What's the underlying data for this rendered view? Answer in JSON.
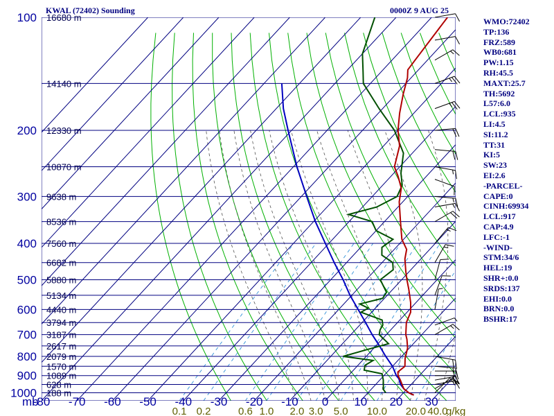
{
  "header": {
    "title": "KWAL (72402) Sounding",
    "timestamp": "0000Z  9 AUG 25"
  },
  "indices": [
    "WMO:72402",
    "TP:136",
    "FRZ:589",
    "WB0:681",
    "PW:1.15",
    "RH:45.5",
    "MAXT:25.7",
    "TH:5692",
    "L57:6.0",
    "LCL:935",
    "LI:4.5",
    "SI:11.2",
    "TT:31",
    "KI:5",
    "SW:23",
    "EI:2.6",
    "-PARCEL-",
    "CAPE:0",
    "CINH:69934",
    "LCL:917",
    "CAP:4.9",
    "LFC:-1",
    "-WIND-",
    "STM:34/6",
    "HEL:19",
    "SHR+:0.0",
    "SRDS:137",
    "EHI:0.0",
    "BRN:0.0",
    "BSHR:17"
  ],
  "colors": {
    "isobar_isotherm": "#000080",
    "dry_adiabat": "#00b000",
    "moist_adiabat": "#505050",
    "mixing_ratio": "#3090d8",
    "temperature": "#b00000",
    "dewpoint": "#005000",
    "parcel": "#0000c0",
    "axis_label": "#0000a0",
    "mixing_label": "#606000",
    "wind": "#000000"
  },
  "chart_data": {
    "type": "line",
    "chart_kind": "skew-T log-P sounding",
    "xlabel_unit": "mb",
    "temperature_ticks": [
      -80,
      -70,
      -60,
      -50,
      -40,
      -30,
      -20,
      -10,
      0,
      10,
      20,
      30,
      40
    ],
    "pressure_ticks": [
      100,
      200,
      300,
      400,
      500,
      600,
      700,
      800,
      900,
      1000
    ],
    "mixing_ratio_axis_unit": "g/kg",
    "mixing_ratio_labels": [
      "0.1",
      "0.2",
      "0.6",
      "1.0",
      "2.0",
      "3.0",
      "5.0",
      "10.0",
      "20.0",
      "40.0"
    ],
    "mixing_ratio_values": [
      0.1,
      0.2,
      0.6,
      1.0,
      2.0,
      3.0,
      5.0,
      10.0,
      20.0,
      40.0
    ],
    "height_labels": [
      {
        "p": 100,
        "label": "16680 m"
      },
      {
        "p": 150,
        "label": "14140 m"
      },
      {
        "p": 200,
        "label": "12330 m"
      },
      {
        "p": 250,
        "label": "10870 m"
      },
      {
        "p": 300,
        "label": "9638 m"
      },
      {
        "p": 350,
        "label": "8536 m"
      },
      {
        "p": 400,
        "label": "7560 m"
      },
      {
        "p": 450,
        "label": "6682 m"
      },
      {
        "p": 500,
        "label": "5880 m"
      },
      {
        "p": 550,
        "label": "5134 m"
      },
      {
        "p": 600,
        "label": "4440 m"
      },
      {
        "p": 650,
        "label": "3794 m"
      },
      {
        "p": 700,
        "label": "3187 m"
      },
      {
        "p": 750,
        "label": "2617 m"
      },
      {
        "p": 800,
        "label": "2079 m"
      },
      {
        "p": 850,
        "label": "1570 m"
      },
      {
        "p": 900,
        "label": "1089 m"
      },
      {
        "p": 950,
        "label": "628 m"
      },
      {
        "p": 1000,
        "label": "188 m"
      }
    ],
    "temperature": [
      [
        1014,
        23.5
      ],
      [
        1000,
        21.5
      ],
      [
        975,
        19.0
      ],
      [
        925,
        15.8
      ],
      [
        900,
        14.0
      ],
      [
        880,
        13.0
      ],
      [
        850,
        13.5
      ],
      [
        810,
        11.5
      ],
      [
        760,
        9.5
      ],
      [
        720,
        7.0
      ],
      [
        700,
        5.5
      ],
      [
        650,
        2.5
      ],
      [
        610,
        1.0
      ],
      [
        575,
        -1.5
      ],
      [
        530,
        -5.5
      ],
      [
        500,
        -8.5
      ],
      [
        475,
        -11.0
      ],
      [
        440,
        -14.5
      ],
      [
        415,
        -16.5
      ],
      [
        390,
        -20.5
      ],
      [
        350,
        -25.5
      ],
      [
        310,
        -31.0
      ],
      [
        285,
        -34.0
      ],
      [
        265,
        -38.0
      ],
      [
        250,
        -41.5
      ],
      [
        220,
        -45.5
      ],
      [
        200,
        -50.0
      ],
      [
        180,
        -54.0
      ],
      [
        160,
        -58.0
      ],
      [
        145,
        -61.0
      ],
      [
        138,
        -63.0
      ],
      [
        130,
        -63.5
      ],
      [
        100,
        -65.5
      ]
    ],
    "dewpoint": [
      [
        1000,
        15.0
      ],
      [
        980,
        13.5
      ],
      [
        925,
        11.0
      ],
      [
        890,
        9.0
      ],
      [
        870,
        3.0
      ],
      [
        845,
        2.0
      ],
      [
        820,
        3.0
      ],
      [
        800,
        -6.5
      ],
      [
        770,
        -2.0
      ],
      [
        740,
        3.0
      ],
      [
        700,
        -2.0
      ],
      [
        680,
        -3.0
      ],
      [
        660,
        -3.5
      ],
      [
        640,
        -5.0
      ],
      [
        610,
        -13.0
      ],
      [
        595,
        -12.0
      ],
      [
        580,
        -15.5
      ],
      [
        560,
        -10.5
      ],
      [
        540,
        -11.0
      ],
      [
        500,
        -16.0
      ],
      [
        470,
        -15.0
      ],
      [
        450,
        -17.0
      ],
      [
        430,
        -22.0
      ],
      [
        410,
        -24.0
      ],
      [
        390,
        -23.0
      ],
      [
        370,
        -30.0
      ],
      [
        350,
        -33.5
      ],
      [
        335,
        -42.0
      ],
      [
        320,
        -36.0
      ],
      [
        300,
        -33.0
      ],
      [
        280,
        -34.5
      ],
      [
        260,
        -38.0
      ],
      [
        230,
        -42.5
      ],
      [
        200,
        -51.0
      ],
      [
        175,
        -61.0
      ],
      [
        150,
        -72.0
      ],
      [
        140,
        -75.0
      ],
      [
        125,
        -80.0
      ],
      [
        100,
        -86.0
      ]
    ],
    "parcel": [
      [
        1014,
        23.5
      ],
      [
        1000,
        21.5
      ],
      [
        975,
        19.0
      ],
      [
        950,
        17.0
      ],
      [
        917,
        15.0
      ],
      [
        900,
        13.5
      ],
      [
        850,
        10.0
      ],
      [
        800,
        5.5
      ],
      [
        750,
        1.0
      ],
      [
        700,
        -4.0
      ],
      [
        650,
        -9.0
      ],
      [
        600,
        -14.5
      ],
      [
        550,
        -20.5
      ],
      [
        500,
        -26.5
      ],
      [
        450,
        -33.5
      ],
      [
        400,
        -41.0
      ],
      [
        350,
        -49.5
      ],
      [
        300,
        -58.5
      ],
      [
        250,
        -69.0
      ],
      [
        200,
        -81.0
      ],
      [
        175,
        -88.0
      ],
      [
        150,
        -95.0
      ]
    ],
    "wind_barbs": [
      {
        "p": 1000,
        "dir": 45,
        "spd": 10
      },
      {
        "p": 975,
        "dir": 60,
        "spd": 15
      },
      {
        "p": 950,
        "dir": 80,
        "spd": 15
      },
      {
        "p": 925,
        "dir": 80,
        "spd": 20
      },
      {
        "p": 900,
        "dir": 90,
        "spd": 20
      },
      {
        "p": 875,
        "dir": 90,
        "spd": 15
      },
      {
        "p": 850,
        "dir": 95,
        "spd": 15
      },
      {
        "p": 800,
        "dir": 100,
        "spd": 20
      },
      {
        "p": 700,
        "dir": 60,
        "spd": 15
      },
      {
        "p": 660,
        "dir": 70,
        "spd": 5
      },
      {
        "p": 600,
        "dir": 10,
        "spd": 5
      },
      {
        "p": 550,
        "dir": 20,
        "spd": 10
      },
      {
        "p": 500,
        "dir": 15,
        "spd": 10
      },
      {
        "p": 450,
        "dir": 30,
        "spd": 15
      },
      {
        "p": 400,
        "dir": 40,
        "spd": 15
      },
      {
        "p": 350,
        "dir": 60,
        "spd": 20
      },
      {
        "p": 320,
        "dir": 80,
        "spd": 15
      },
      {
        "p": 300,
        "dir": 95,
        "spd": 15
      },
      {
        "p": 270,
        "dir": 110,
        "spd": 10
      },
      {
        "p": 250,
        "dir": 100,
        "spd": 15
      },
      {
        "p": 225,
        "dir": 95,
        "spd": 20
      },
      {
        "p": 200,
        "dir": 85,
        "spd": 20
      },
      {
        "p": 175,
        "dir": 70,
        "spd": 25
      },
      {
        "p": 150,
        "dir": 70,
        "spd": 25
      },
      {
        "p": 130,
        "dir": 60,
        "spd": 15
      },
      {
        "p": 115,
        "dir": 80,
        "spd": 10
      },
      {
        "p": 100,
        "dir": 80,
        "spd": 10
      }
    ]
  }
}
